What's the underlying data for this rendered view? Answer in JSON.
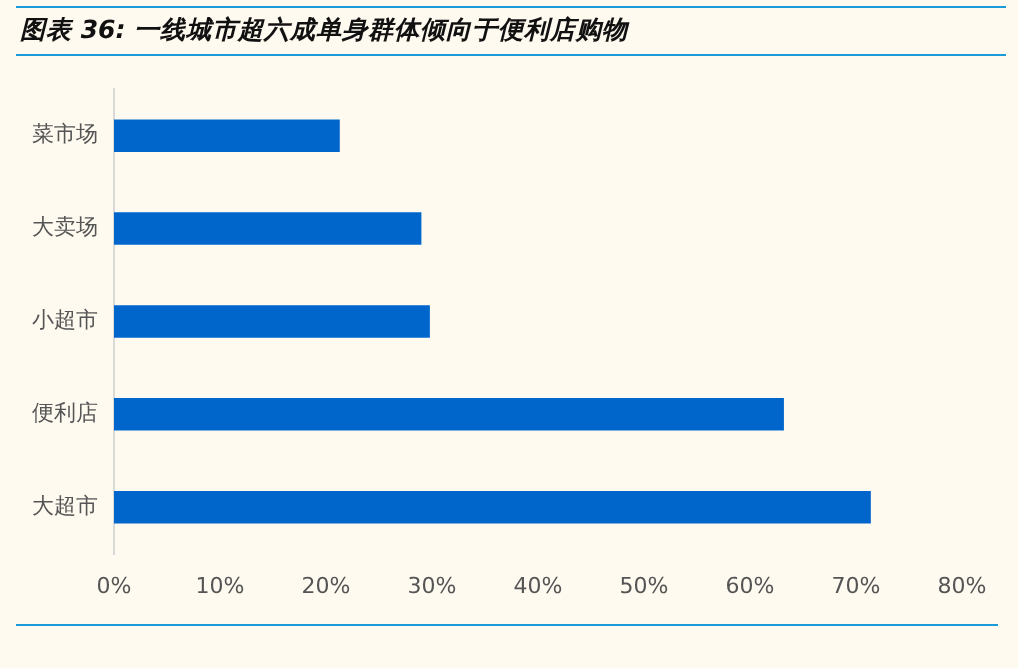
{
  "chart_data": {
    "type": "bar",
    "orientation": "horizontal",
    "title": "图表 36:  一线城市超六成单身群体倾向于便利店购物",
    "categories": [
      "菜市场",
      "大卖场",
      "小超市",
      "便利店",
      "大超市"
    ],
    "values": [
      21.3,
      29.0,
      29.8,
      63.2,
      71.4
    ],
    "color": "#0066cc",
    "xlim": [
      0,
      80
    ],
    "xticks": [
      {
        "value": 0,
        "label": "0%"
      },
      {
        "value": 10,
        "label": "10%"
      },
      {
        "value": 20,
        "label": "20%"
      },
      {
        "value": 30,
        "label": "30%"
      },
      {
        "value": 40,
        "label": "40%"
      },
      {
        "value": 50,
        "label": "50%"
      },
      {
        "value": 60,
        "label": "60%"
      },
      {
        "value": 70,
        "label": "70%"
      },
      {
        "value": 80,
        "label": "80%"
      }
    ],
    "grid": false,
    "legend": false
  }
}
